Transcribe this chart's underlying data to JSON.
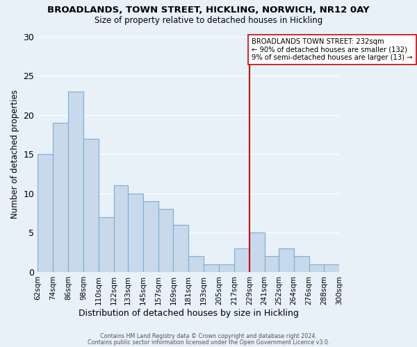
{
  "title": "BROADLANDS, TOWN STREET, HICKLING, NORWICH, NR12 0AY",
  "subtitle": "Size of property relative to detached houses in Hickling",
  "xlabel": "Distribution of detached houses by size in Hickling",
  "ylabel": "Number of detached properties",
  "footer_line1": "Contains HM Land Registry data © Crown copyright and database right 2024.",
  "footer_line2": "Contains public sector information licensed under the Open Government Licence v3.0.",
  "bin_edges": [
    62,
    74,
    86,
    98,
    110,
    122,
    133,
    145,
    157,
    169,
    181,
    193,
    205,
    217,
    229,
    241,
    252,
    264,
    276,
    288,
    300
  ],
  "bin_labels": [
    "62sqm",
    "74sqm",
    "86sqm",
    "98sqm",
    "110sqm",
    "122sqm",
    "133sqm",
    "145sqm",
    "157sqm",
    "169sqm",
    "181sqm",
    "193sqm",
    "205sqm",
    "217sqm",
    "229sqm",
    "241sqm",
    "252sqm",
    "264sqm",
    "276sqm",
    "288sqm",
    "300sqm"
  ],
  "bar_values": [
    15,
    19,
    23,
    17,
    7,
    11,
    10,
    9,
    8,
    6,
    2,
    1,
    1,
    3,
    5,
    2,
    3,
    2,
    1,
    1
  ],
  "bar_color": "#c8d9ec",
  "bar_edge_color": "#7aaed0",
  "grid_color": "#ffffff",
  "bg_color": "#e8f0f8",
  "ylim": [
    0,
    30
  ],
  "yticks": [
    0,
    5,
    10,
    15,
    20,
    25,
    30
  ],
  "vline_x": 229,
  "vline_color": "#cc0000",
  "annotation_text": "BROADLANDS TOWN STREET: 232sqm\n← 90% of detached houses are smaller (132)\n9% of semi-detached houses are larger (13) →"
}
